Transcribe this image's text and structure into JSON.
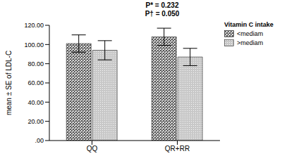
{
  "chart_data": {
    "type": "bar",
    "annotations": [
      "P* = 0.232",
      "P† = 0.050"
    ],
    "y_label": "mean ± SE of LDL-C",
    "legend_title": "Vitamin C intake",
    "categories": [
      "QQ",
      "QR+RR"
    ],
    "series": [
      {
        "name": "<mediam",
        "color": "#4d4d4d",
        "values": [
          101,
          108
        ],
        "errors": [
          9,
          9
        ]
      },
      {
        "name": ">mediam",
        "color": "#c8c8c8",
        "values": [
          94,
          87
        ],
        "errors": [
          10,
          9
        ]
      }
    ],
    "ylim": [
      0,
      120
    ],
    "yticks": [
      {
        "value": 0,
        "label": ".00"
      },
      {
        "value": 20,
        "label": "20.00"
      },
      {
        "value": 40,
        "label": "40.00"
      },
      {
        "value": 60,
        "label": "60.00"
      },
      {
        "value": 80,
        "label": "80.00"
      },
      {
        "value": 100,
        "label": "100.00"
      },
      {
        "value": 120,
        "label": "120.00"
      }
    ],
    "grid": false,
    "legend": "upper right"
  }
}
